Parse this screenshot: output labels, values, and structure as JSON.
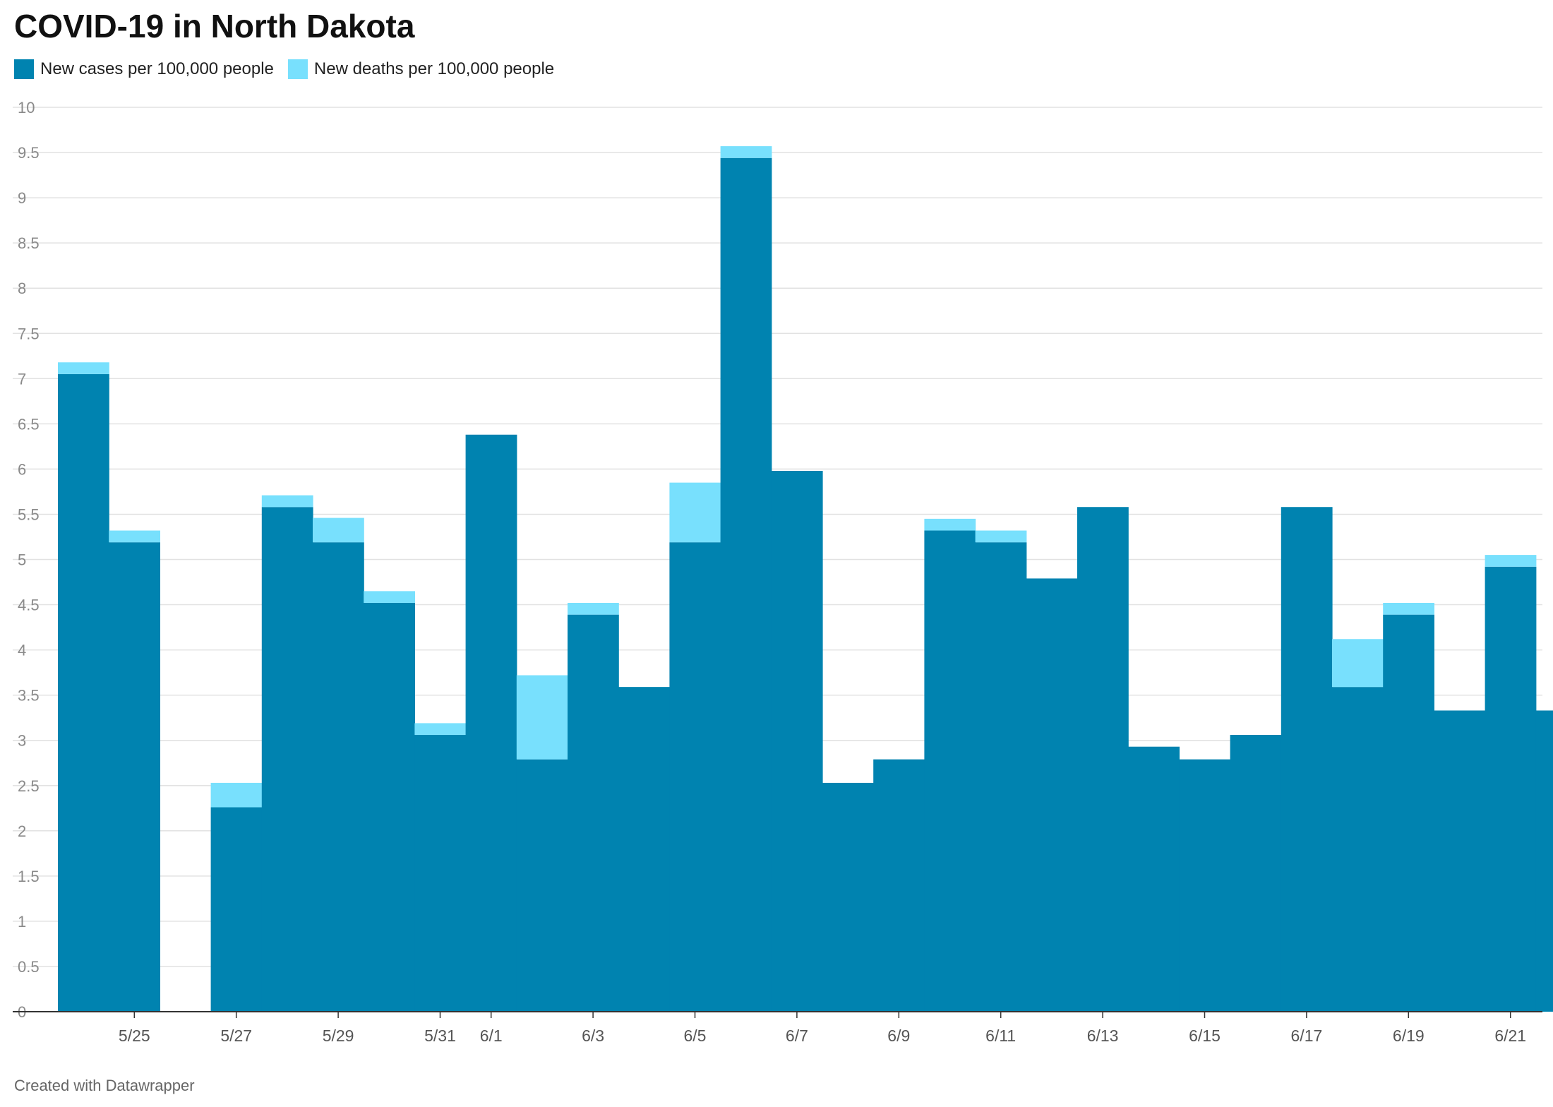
{
  "title": "COVID-19 in North Dakota",
  "footer": "Created with Datawrapper",
  "chart_data": {
    "type": "bar",
    "stacked": true,
    "title": "COVID-19 in North Dakota",
    "xlabel": "",
    "ylabel": "",
    "ylim": [
      0,
      10
    ],
    "y_ticks": [
      "0",
      "0.5",
      "1",
      "1.5",
      "2",
      "2.5",
      "3",
      "3.5",
      "4",
      "4.5",
      "5",
      "5.5",
      "6",
      "6.5",
      "7",
      "7.5",
      "8",
      "8.5",
      "9",
      "9.5",
      "10"
    ],
    "grid": true,
    "legend": "top-left",
    "categories": [
      "5/24",
      "5/25",
      "5/26",
      "5/27",
      "5/28",
      "5/29",
      "5/30",
      "5/31",
      "6/1",
      "6/2",
      "6/3",
      "6/4",
      "6/5",
      "6/6",
      "6/7",
      "6/8",
      "6/9",
      "6/10",
      "6/11",
      "6/12",
      "6/13",
      "6/14",
      "6/15",
      "6/16",
      "6/17",
      "6/18",
      "6/19",
      "6/20",
      "6/21",
      "6/22"
    ],
    "x_tick_labels": [
      "5/25",
      "5/27",
      "5/29",
      "5/31",
      "6/1",
      "6/3",
      "6/5",
      "6/7",
      "6/9",
      "6/11",
      "6/13",
      "6/15",
      "6/17",
      "6/19",
      "6/21"
    ],
    "series": [
      {
        "name": "New cases per 100,000 people",
        "color": "#0083b0",
        "values": [
          7.05,
          5.19,
          0,
          2.26,
          5.58,
          5.19,
          4.52,
          3.06,
          6.38,
          2.79,
          4.39,
          3.59,
          5.19,
          9.44,
          5.98,
          2.53,
          2.79,
          5.32,
          5.19,
          4.79,
          5.58,
          2.93,
          2.79,
          3.06,
          5.58,
          3.59,
          4.39,
          3.33,
          4.92,
          3.33
        ]
      },
      {
        "name": "New deaths per 100,000 people",
        "color": "#78e0fd",
        "values": [
          0.13,
          0.13,
          0,
          0.27,
          0.13,
          0.27,
          0.13,
          0.13,
          0,
          0.93,
          0.13,
          0,
          0.66,
          0.13,
          0,
          0,
          0,
          0.13,
          0.13,
          0,
          0,
          0,
          0,
          0,
          0,
          0.53,
          0.13,
          0,
          0.13,
          0
        ]
      }
    ]
  }
}
